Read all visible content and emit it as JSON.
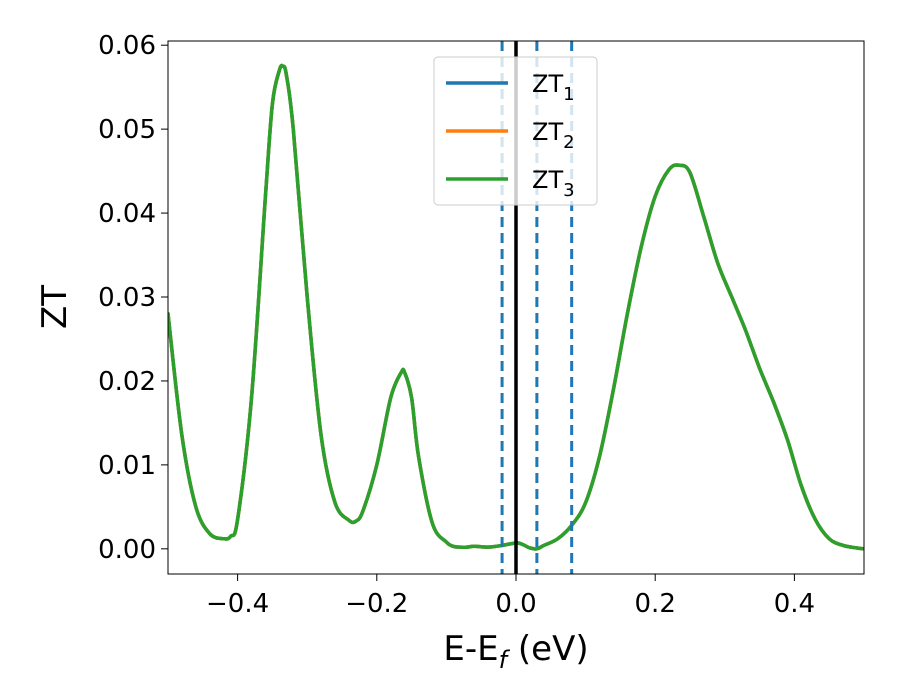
{
  "chart_data": {
    "type": "line",
    "xlabel": {
      "main": "E-E",
      "sub": "f",
      "suffix": " (eV)"
    },
    "ylabel": "ZT",
    "xlim": [
      -0.5,
      0.5
    ],
    "ylim": [
      -0.003,
      0.0605
    ],
    "x_ticks": [
      -0.4,
      -0.2,
      0.0,
      0.2,
      0.4
    ],
    "x_tick_labels": [
      "−0.4",
      "−0.2",
      "0.0",
      "0.2",
      "0.4"
    ],
    "y_ticks": [
      0.0,
      0.01,
      0.02,
      0.03,
      0.04,
      0.05,
      0.06
    ],
    "y_tick_labels": [
      "0.00",
      "0.01",
      "0.02",
      "0.03",
      "0.04",
      "0.05",
      "0.06"
    ],
    "grid": false,
    "legend_position": "top-center",
    "vertical_lines": [
      {
        "x": 0.0,
        "color": "#000000",
        "style": "solid"
      },
      {
        "x": -0.02,
        "color": "#1f77b4",
        "style": "dashed"
      },
      {
        "x": 0.03,
        "color": "#1f77b4",
        "style": "dashed"
      },
      {
        "x": 0.08,
        "color": "#1f77b4",
        "style": "dashed"
      }
    ],
    "series": [
      {
        "name": "ZT",
        "sub": "1",
        "color": "#1f77b4",
        "shares_curve": true
      },
      {
        "name": "ZT",
        "sub": "2",
        "color": "#ff7f0e",
        "shares_curve": true
      },
      {
        "name": "ZT",
        "sub": "3",
        "color": "#2ca02c",
        "shares_curve": false
      }
    ],
    "x": [
      -0.5,
      -0.48,
      -0.46,
      -0.44,
      -0.42,
      -0.41,
      -0.4,
      -0.38,
      -0.36,
      -0.35,
      -0.34,
      -0.335,
      -0.33,
      -0.32,
      -0.3,
      -0.28,
      -0.26,
      -0.24,
      -0.23,
      -0.22,
      -0.2,
      -0.18,
      -0.165,
      -0.16,
      -0.15,
      -0.14,
      -0.12,
      -0.1,
      -0.09,
      -0.08,
      -0.07,
      -0.06,
      -0.04,
      -0.02,
      0.0,
      0.01,
      0.02,
      0.03,
      0.04,
      0.06,
      0.08,
      0.1,
      0.12,
      0.14,
      0.16,
      0.18,
      0.2,
      0.22,
      0.235,
      0.25,
      0.27,
      0.29,
      0.31,
      0.33,
      0.35,
      0.37,
      0.39,
      0.41,
      0.43,
      0.45,
      0.47,
      0.49,
      0.5
    ],
    "y": [
      0.028,
      0.0135,
      0.005,
      0.0018,
      0.0012,
      0.0015,
      0.0035,
      0.018,
      0.042,
      0.053,
      0.057,
      0.0575,
      0.0565,
      0.05,
      0.03,
      0.0135,
      0.0055,
      0.0034,
      0.0033,
      0.0045,
      0.01,
      0.018,
      0.021,
      0.021,
      0.018,
      0.011,
      0.003,
      0.0008,
      0.0003,
      0.0002,
      0.0002,
      0.0003,
      0.0002,
      0.0004,
      0.0007,
      0.0005,
      0.0001,
      0.0,
      0.0004,
      0.0012,
      0.0028,
      0.0055,
      0.011,
      0.019,
      0.028,
      0.036,
      0.042,
      0.0452,
      0.0457,
      0.0448,
      0.0395,
      0.034,
      0.03,
      0.026,
      0.0215,
      0.0175,
      0.013,
      0.0075,
      0.0035,
      0.0012,
      0.0004,
      0.0001,
      0.0
    ]
  }
}
